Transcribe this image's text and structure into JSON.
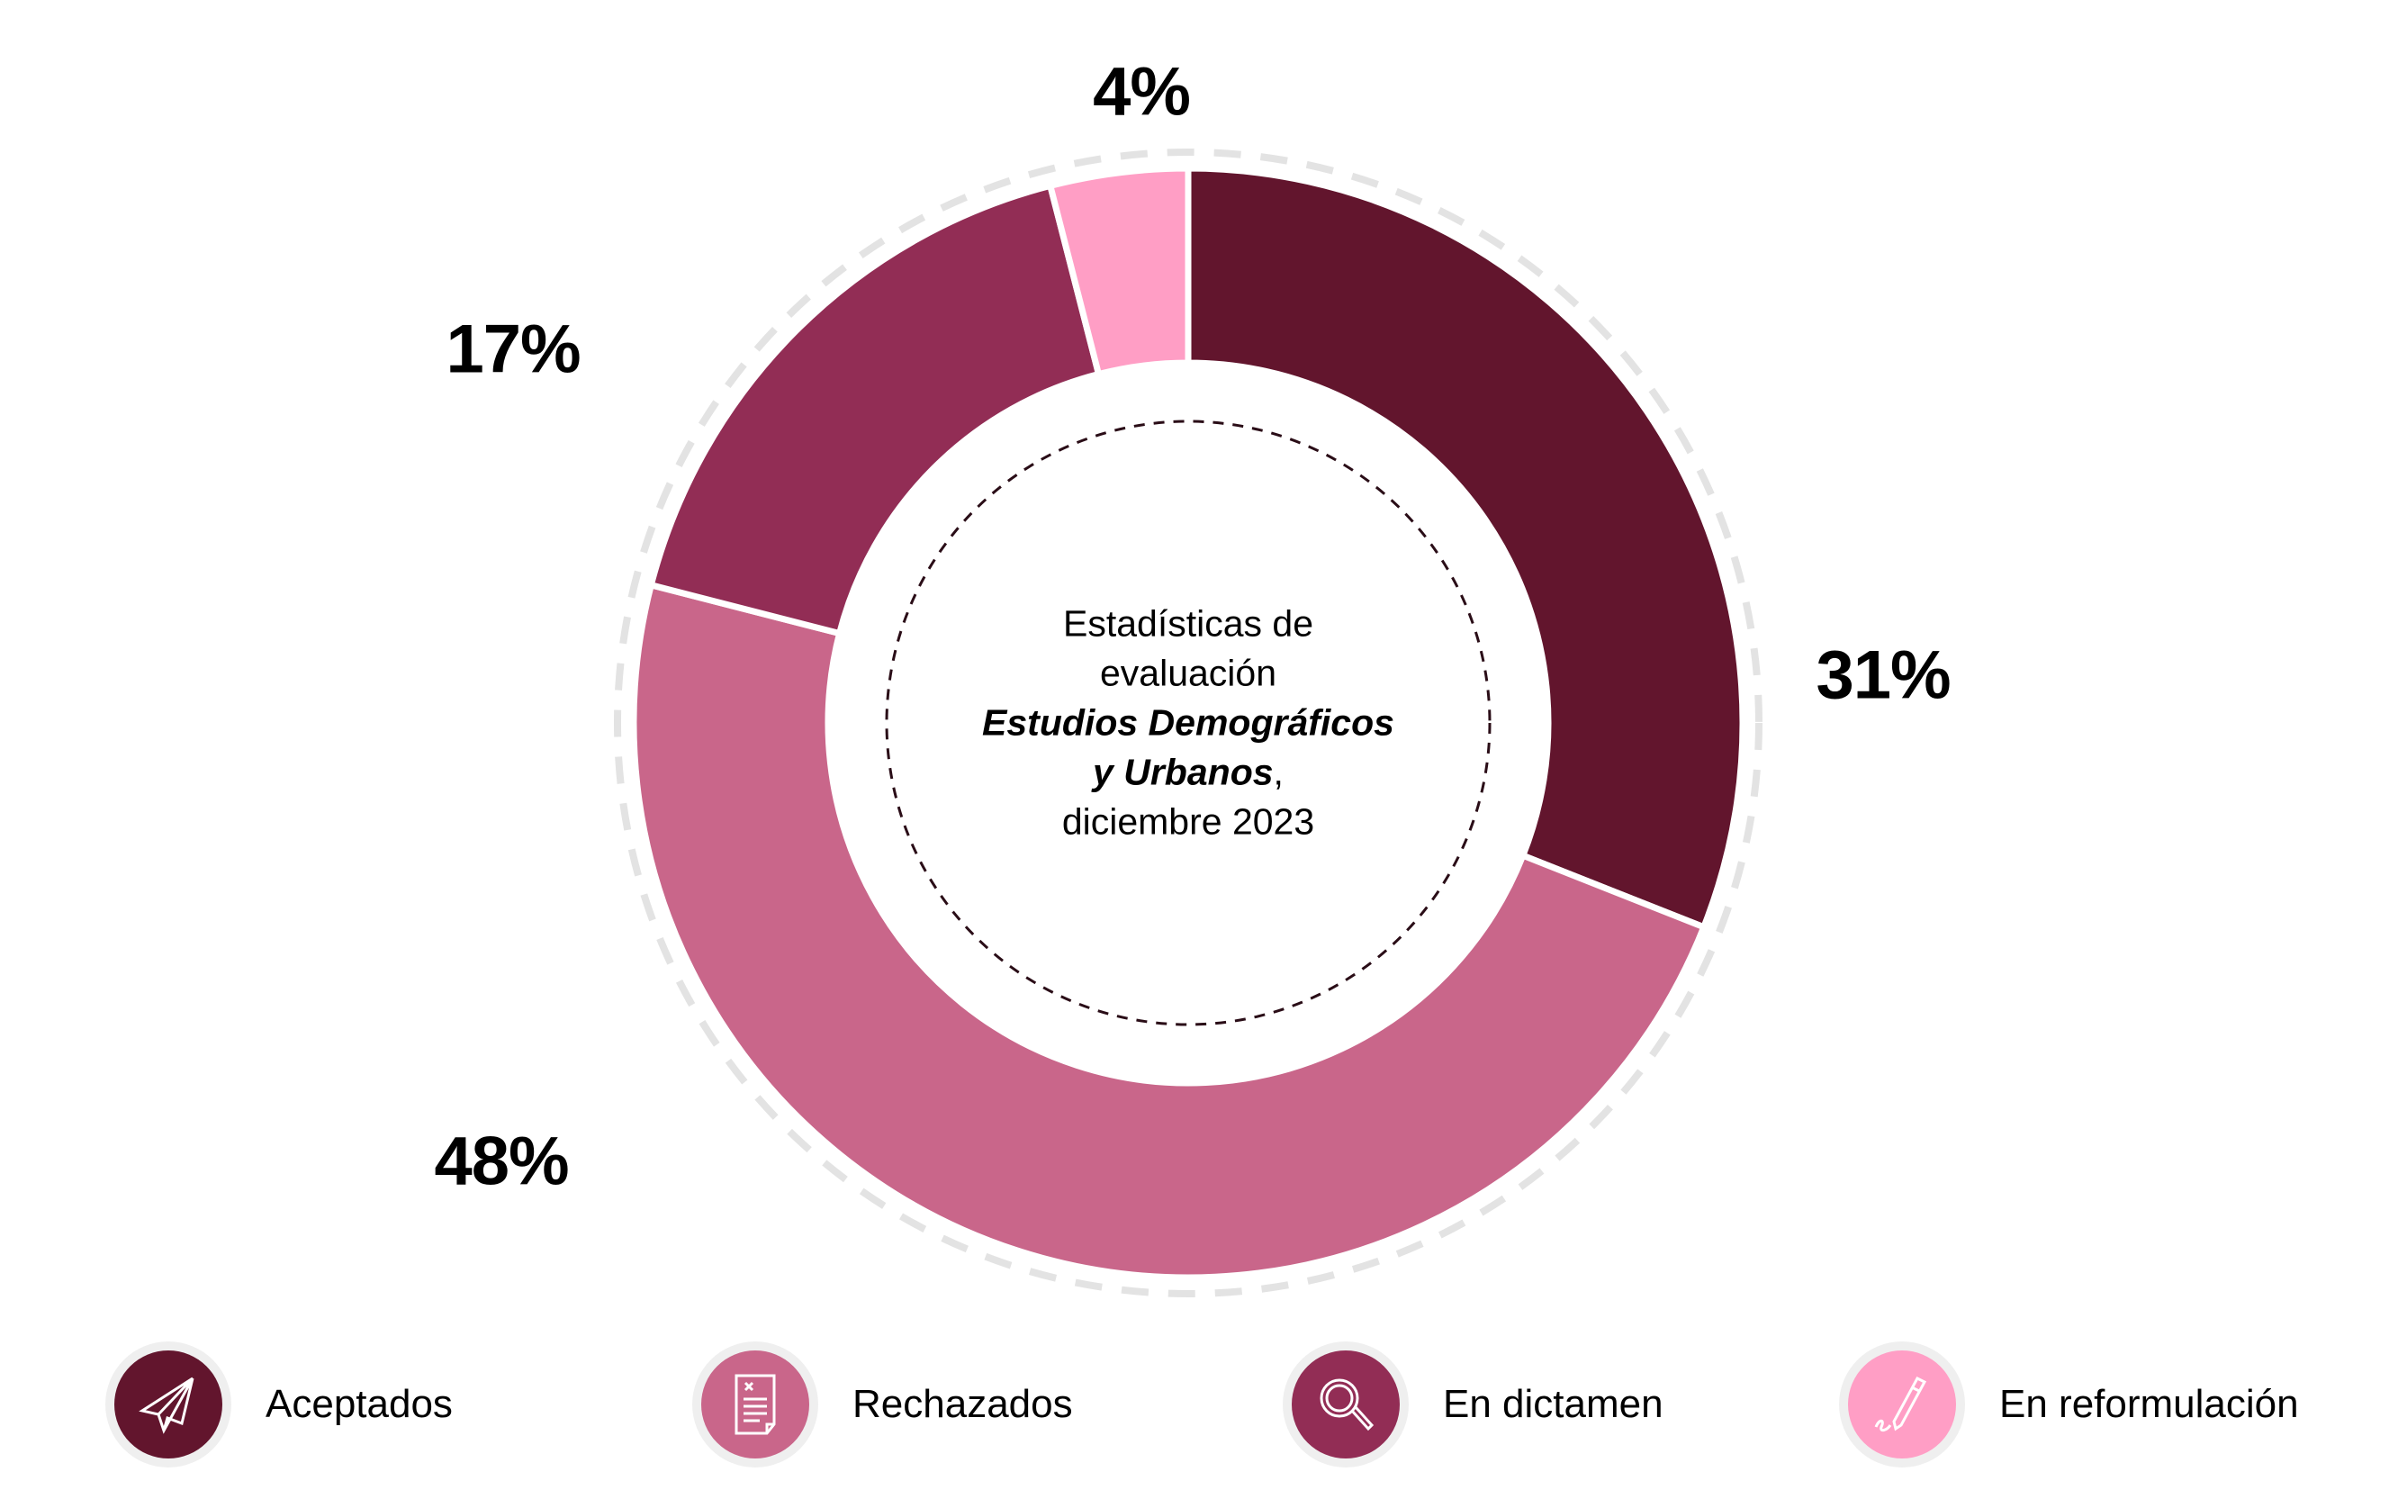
{
  "chart_data": {
    "type": "pie",
    "variant": "donut",
    "title": "Estadísticas de evaluación Estudios Demográficos y Urbanos, diciembre 2023",
    "center_text": {
      "line1": "Estadísticas de",
      "line2": "evaluación",
      "line3_italic": "Estudios Demográficos",
      "line4_italic": "y Urbanos",
      "line4_suffix": ",",
      "line5": "diciembre 2023"
    },
    "categories": [
      "Aceptados",
      "Rechazados",
      "En dictamen",
      "En reformulación"
    ],
    "values": [
      31,
      48,
      17,
      4
    ],
    "labels": [
      "31%",
      "48%",
      "17%",
      "4%"
    ],
    "colors": [
      "#62152d",
      "#c9668a",
      "#922d55",
      "#ff9ec5"
    ],
    "icons": [
      "paper-plane-icon",
      "rejected-document-icon",
      "magnifier-icon",
      "pen-signature-icon"
    ],
    "legend_position": "bottom"
  }
}
